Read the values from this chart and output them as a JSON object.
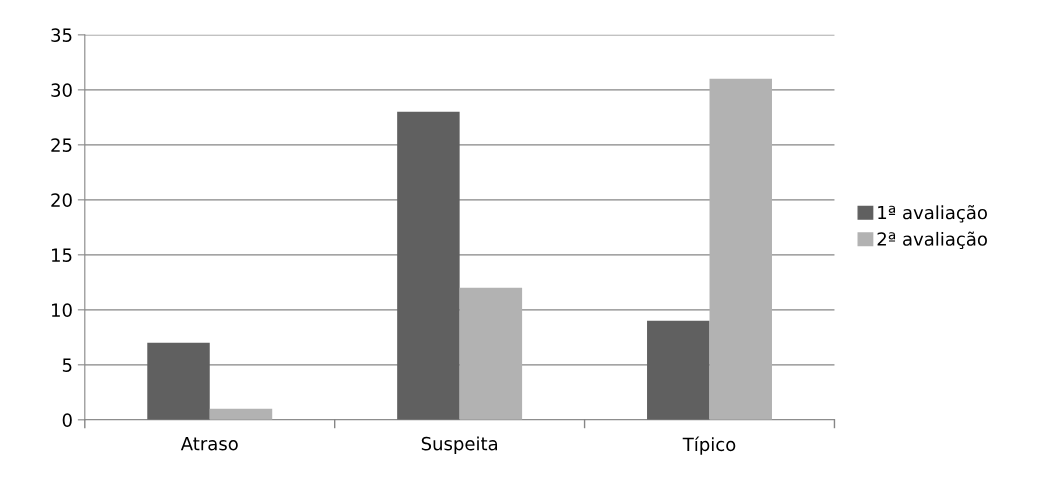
{
  "chart_data": {
    "type": "bar",
    "categories": [
      "Atraso",
      "Suspeita",
      "Típico"
    ],
    "series": [
      {
        "name": "1ª avaliação",
        "color": "#606060",
        "values": [
          7,
          28,
          9
        ]
      },
      {
        "name": "2ª avaliação",
        "color": "#b2b2b2",
        "values": [
          1,
          12,
          31
        ]
      }
    ],
    "ylim": [
      0,
      35
    ],
    "yticks": [
      0,
      5,
      10,
      15,
      20,
      25,
      30,
      35
    ],
    "grid": "y",
    "legend": "right"
  }
}
